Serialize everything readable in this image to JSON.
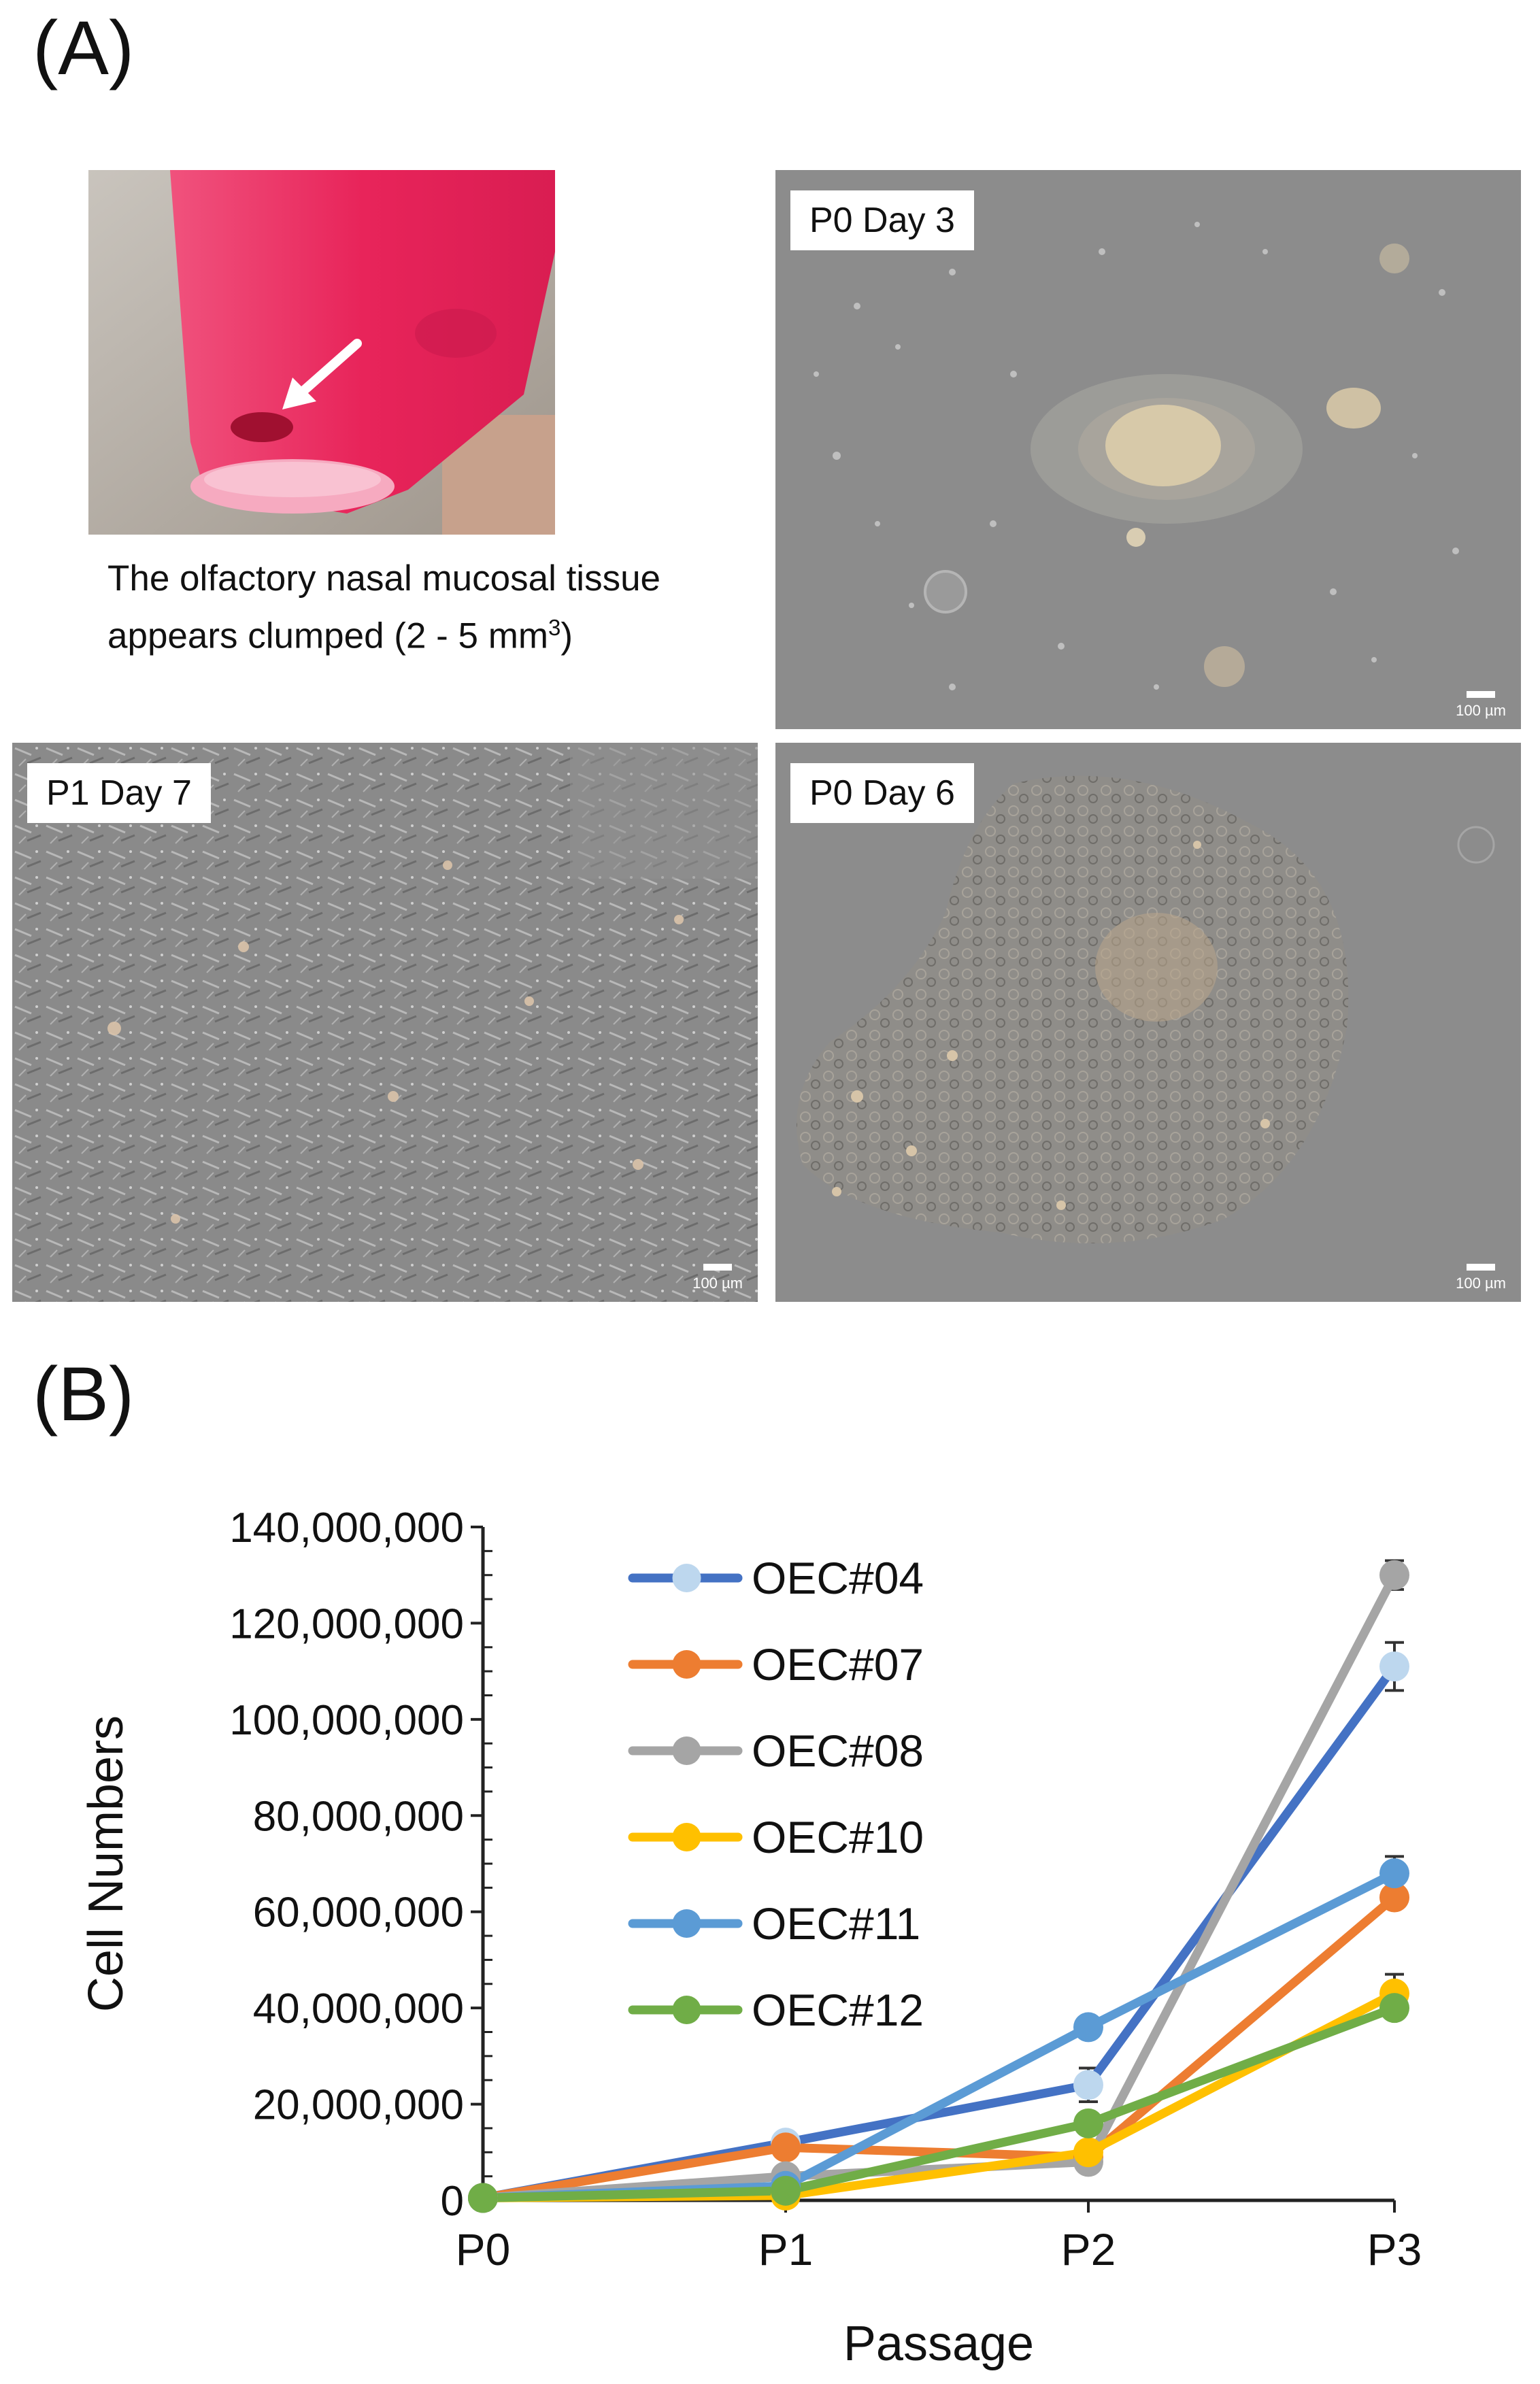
{
  "panels": {
    "a_label": "(A)",
    "b_label": "(B)"
  },
  "photo": {
    "caption_line1": "The olfactory nasal mucosal tissue",
    "caption_line2_main": "appears clumped (2 - 5 mm",
    "caption_line2_sup": "3",
    "caption_line2_end": ")",
    "arrow": "white-arrow-icon"
  },
  "micrographs": [
    {
      "label": "P0 Day 3",
      "scale": "100 µm"
    },
    {
      "label": "P1 Day 7",
      "scale": "100 µm"
    },
    {
      "label": "P0 Day 6",
      "scale": "100 µm"
    }
  ],
  "colors": {
    "tube_pink": "#e8245a",
    "micro_bg": "#8e8e8e"
  },
  "chart_data": {
    "type": "line",
    "xlabel": "Passage",
    "ylabel": "Cell Numbers",
    "categories": [
      "P0",
      "P1",
      "P2",
      "P3"
    ],
    "ylim": [
      0,
      140000000
    ],
    "yticks": [
      0,
      20000000,
      40000000,
      60000000,
      80000000,
      100000000,
      120000000,
      140000000
    ],
    "ytick_labels": [
      "0",
      "20,000,000",
      "40,000,000",
      "60,000,000",
      "80,000,000",
      "100,000,000",
      "120,000,000",
      "140,000,000"
    ],
    "legend_position": "top-left inside plot",
    "series": [
      {
        "name": "OEC#04",
        "line_color": "#4472c4",
        "marker_color": "#bdd7ee",
        "values": [
          500000,
          12000000,
          24000000,
          111000000
        ],
        "errors": [
          0,
          1000000,
          3500000,
          5000000
        ]
      },
      {
        "name": "OEC#07",
        "line_color": "#ed7d31",
        "marker_color": "#ed7d31",
        "values": [
          500000,
          11000000,
          9000000,
          63000000
        ],
        "errors": [
          0,
          1000000,
          1000000,
          2000000
        ]
      },
      {
        "name": "OEC#08",
        "line_color": "#a5a5a5",
        "marker_color": "#a5a5a5",
        "values": [
          500000,
          5000000,
          8000000,
          130000000
        ],
        "errors": [
          0,
          1000000,
          1500000,
          3000000
        ]
      },
      {
        "name": "OEC#10",
        "line_color": "#ffc000",
        "marker_color": "#ffc000",
        "values": [
          500000,
          1000000,
          10000000,
          43000000
        ],
        "errors": [
          0,
          500000,
          1000000,
          4000000
        ]
      },
      {
        "name": "OEC#11",
        "line_color": "#5b9bd5",
        "marker_color": "#5b9bd5",
        "values": [
          500000,
          3000000,
          36000000,
          68000000
        ],
        "errors": [
          0,
          500000,
          1000000,
          3500000
        ]
      },
      {
        "name": "OEC#12",
        "line_color": "#70ad47",
        "marker_color": "#70ad47",
        "values": [
          500000,
          2000000,
          16000000,
          40000000
        ],
        "errors": [
          0,
          500000,
          1000000,
          1000000
        ]
      }
    ]
  }
}
